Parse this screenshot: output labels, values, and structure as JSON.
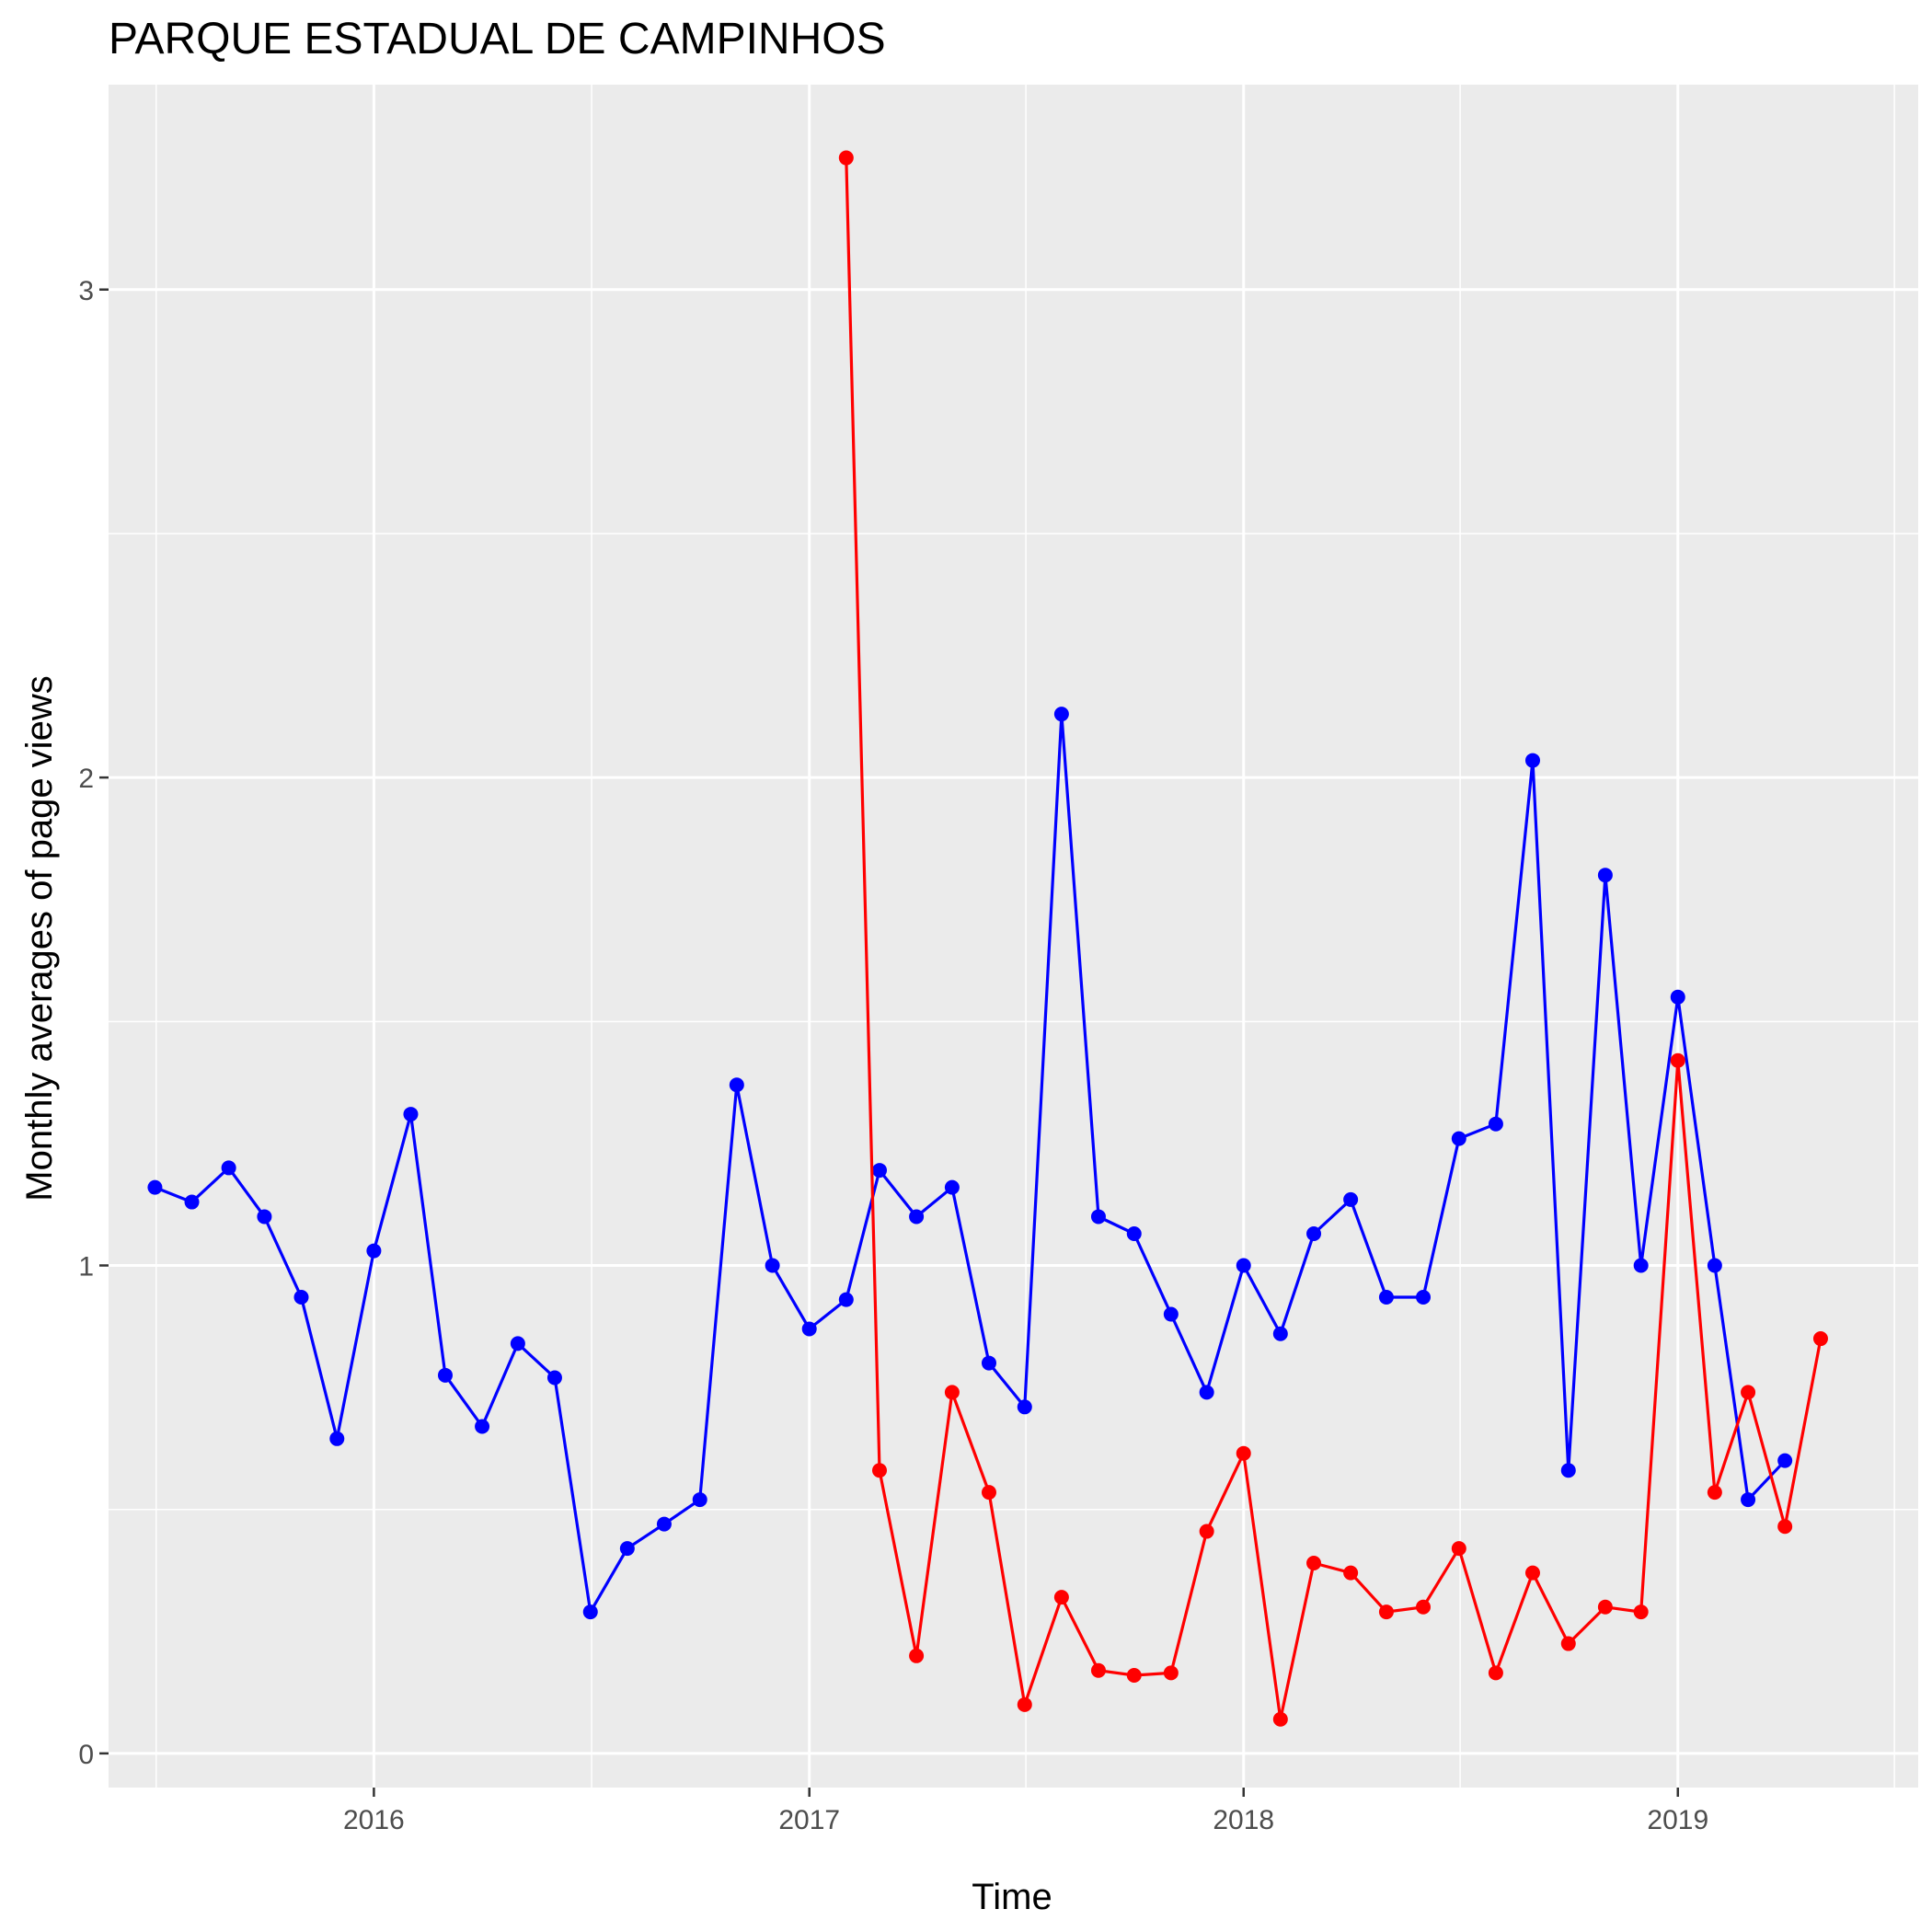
{
  "chart_data": {
    "type": "line",
    "title": "PARQUE ESTADUAL DE CAMPINHOS",
    "xlabel": "Time",
    "ylabel": "Monthly averages of page views",
    "x_ticks": [
      "2016",
      "2017",
      "2018",
      "2019"
    ],
    "y_ticks": [
      "0",
      "1",
      "2",
      "3"
    ],
    "ylim": [
      -0.07,
      3.42
    ],
    "xlim": [
      "2015-05-23",
      "2019-07-22"
    ],
    "grid": true,
    "legend": "none",
    "background_color": "#ebebeb",
    "series": [
      {
        "color": "#0000ff",
        "points": [
          [
            "2015-07-01",
            1.16
          ],
          [
            "2015-08-01",
            1.13
          ],
          [
            "2015-09-01",
            1.2
          ],
          [
            "2015-10-01",
            1.1
          ],
          [
            "2015-11-01",
            0.935
          ],
          [
            "2015-12-01",
            0.645
          ],
          [
            "2016-01-01",
            1.03
          ],
          [
            "2016-02-01",
            1.31
          ],
          [
            "2016-03-01",
            0.775
          ],
          [
            "2016-04-01",
            0.67
          ],
          [
            "2016-05-01",
            0.84
          ],
          [
            "2016-06-01",
            0.77
          ],
          [
            "2016-07-01",
            0.29
          ],
          [
            "2016-08-01",
            0.42
          ],
          [
            "2016-09-01",
            0.47
          ],
          [
            "2016-10-01",
            0.52
          ],
          [
            "2016-11-01",
            1.37
          ],
          [
            "2016-12-01",
            1.0
          ],
          [
            "2017-01-01",
            0.87
          ],
          [
            "2017-02-01",
            0.93
          ],
          [
            "2017-03-01",
            1.195
          ],
          [
            "2017-04-01",
            1.1
          ],
          [
            "2017-05-01",
            1.16
          ],
          [
            "2017-06-01",
            0.8
          ],
          [
            "2017-07-01",
            0.71
          ],
          [
            "2017-08-01",
            2.13
          ],
          [
            "2017-09-01",
            1.1
          ],
          [
            "2017-10-01",
            1.065
          ],
          [
            "2017-11-01",
            0.9
          ],
          [
            "2017-12-01",
            0.74
          ],
          [
            "2018-01-01",
            1.0
          ],
          [
            "2018-02-01",
            0.86
          ],
          [
            "2018-03-01",
            1.065
          ],
          [
            "2018-04-01",
            1.135
          ],
          [
            "2018-05-01",
            0.935
          ],
          [
            "2018-06-01",
            0.935
          ],
          [
            "2018-07-01",
            1.26
          ],
          [
            "2018-08-01",
            1.29
          ],
          [
            "2018-09-01",
            2.035
          ],
          [
            "2018-10-01",
            0.58
          ],
          [
            "2018-11-01",
            1.8
          ],
          [
            "2018-12-01",
            1.0
          ],
          [
            "2019-01-01",
            1.55
          ],
          [
            "2019-02-01",
            1.0
          ],
          [
            "2019-03-01",
            0.52
          ],
          [
            "2019-04-01",
            0.6
          ]
        ]
      },
      {
        "color": "#ff0000",
        "points": [
          [
            "2017-02-01",
            3.27
          ],
          [
            "2017-03-01",
            0.58
          ],
          [
            "2017-04-01",
            0.2
          ],
          [
            "2017-05-01",
            0.74
          ],
          [
            "2017-06-01",
            0.535
          ],
          [
            "2017-07-01",
            0.1
          ],
          [
            "2017-08-01",
            0.32
          ],
          [
            "2017-09-01",
            0.17
          ],
          [
            "2017-10-01",
            0.16
          ],
          [
            "2017-11-01",
            0.165
          ],
          [
            "2017-12-01",
            0.455
          ],
          [
            "2018-01-01",
            0.615
          ],
          [
            "2018-02-01",
            0.07
          ],
          [
            "2018-03-01",
            0.39
          ],
          [
            "2018-04-01",
            0.37
          ],
          [
            "2018-05-01",
            0.29
          ],
          [
            "2018-06-01",
            0.3
          ],
          [
            "2018-07-01",
            0.42
          ],
          [
            "2018-08-01",
            0.165
          ],
          [
            "2018-09-01",
            0.37
          ],
          [
            "2018-10-01",
            0.225
          ],
          [
            "2018-11-01",
            0.3
          ],
          [
            "2018-12-01",
            0.29
          ],
          [
            "2019-01-01",
            1.42
          ],
          [
            "2019-02-01",
            0.535
          ],
          [
            "2019-03-01",
            0.74
          ],
          [
            "2019-04-01",
            0.465
          ],
          [
            "2019-05-01",
            0.85
          ]
        ]
      }
    ]
  }
}
